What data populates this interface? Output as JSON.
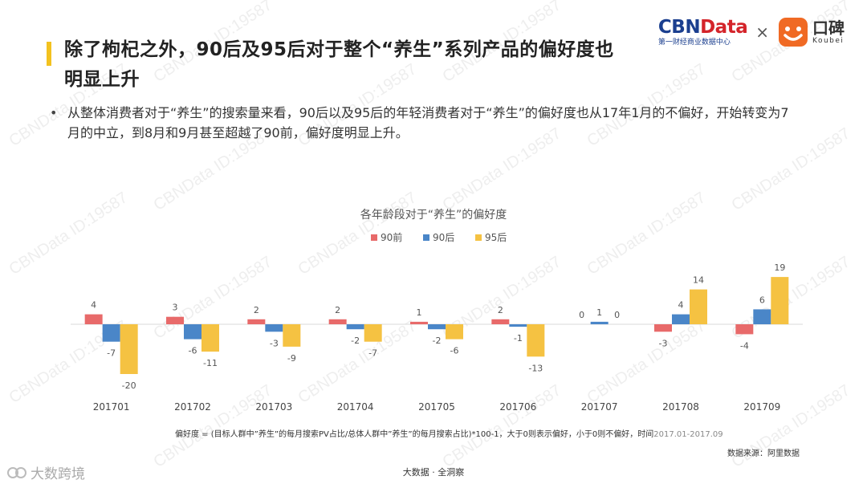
{
  "title": "除了枸杞之外，90后及95后对于整个“养生”系列产品的偏好度也明显上升",
  "brand": {
    "cbn_logo_a": "CBN",
    "cbn_logo_b": "Data",
    "cbn_sub": "第一财经商业数据中心",
    "times": "×",
    "koubei_cn": "口碑",
    "koubei_en": "Koubei"
  },
  "bullet": "•",
  "body_text": "从整体消费者对于“养生”的搜索量来看，90后以及95后的年轻消费者对于“养生”的偏好度也从17年1月的不偏好，开始转变为7月的中立，到8月和9月甚至超越了90前，偏好度明显上升。",
  "chart_data": {
    "type": "bar",
    "title": "各年龄段对于“养生”的偏好度",
    "categories": [
      "201701",
      "201702",
      "201703",
      "201704",
      "201705",
      "201706",
      "201707",
      "201708",
      "201709"
    ],
    "series": [
      {
        "name": "90前",
        "color": "#e86a6a",
        "values": [
          4,
          3,
          2,
          2,
          1,
          2,
          0,
          -3,
          -4
        ]
      },
      {
        "name": "90后",
        "color": "#4a86c8",
        "values": [
          -7,
          -6,
          -3,
          -2,
          -2,
          -1,
          1,
          4,
          6
        ]
      },
      {
        "name": "95后",
        "color": "#f5c242",
        "values": [
          -20,
          -11,
          -9,
          -7,
          -6,
          -13,
          0,
          14,
          19
        ]
      }
    ],
    "legend_position": "top-center"
  },
  "footnote_main": "偏好度 = (目标人群中”养生”的每月搜索PV占比/总体人群中”养生”的每月搜索占比)*100-1，大于0则表示偏好，小于0则不偏好，时间",
  "footnote_date": "2017.01-2017.09",
  "source": "数据来源：阿里数据",
  "footer_center": "大数据 · 全洞察",
  "footer_logo_text": "大数跨境",
  "watermark_text": "CBNData ID:19587"
}
